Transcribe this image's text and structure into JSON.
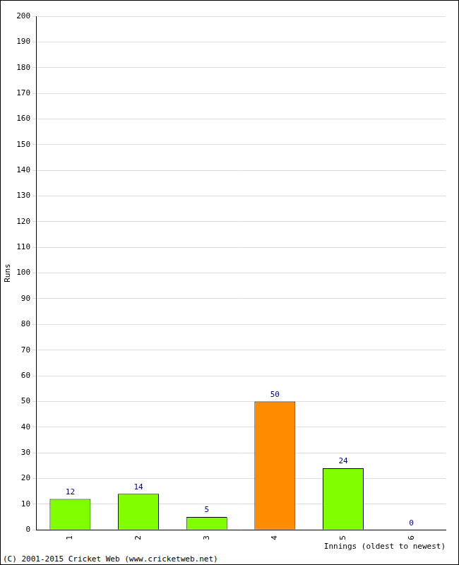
{
  "chart_data": {
    "type": "bar",
    "categories": [
      "1",
      "2",
      "3",
      "4",
      "5",
      "6"
    ],
    "values": [
      12,
      14,
      5,
      50,
      24,
      0
    ],
    "colors": [
      "#80ff00",
      "#80ff00",
      "#80ff00",
      "#ff8c00",
      "#80ff00",
      "#80ff00"
    ],
    "x_label": "Innings (oldest to newest)",
    "y_label": "Runs",
    "annotations": [
      "(C) 2001-2015 Cricket Web (www.cricketweb.net)"
    ],
    "ylim": [
      0,
      200
    ],
    "yticks": [
      0,
      10,
      20,
      30,
      40,
      50,
      60,
      70,
      80,
      90,
      100,
      110,
      120,
      130,
      140,
      150,
      160,
      170,
      180,
      190,
      200
    ],
    "grid": true,
    "data_labels": true
  }
}
